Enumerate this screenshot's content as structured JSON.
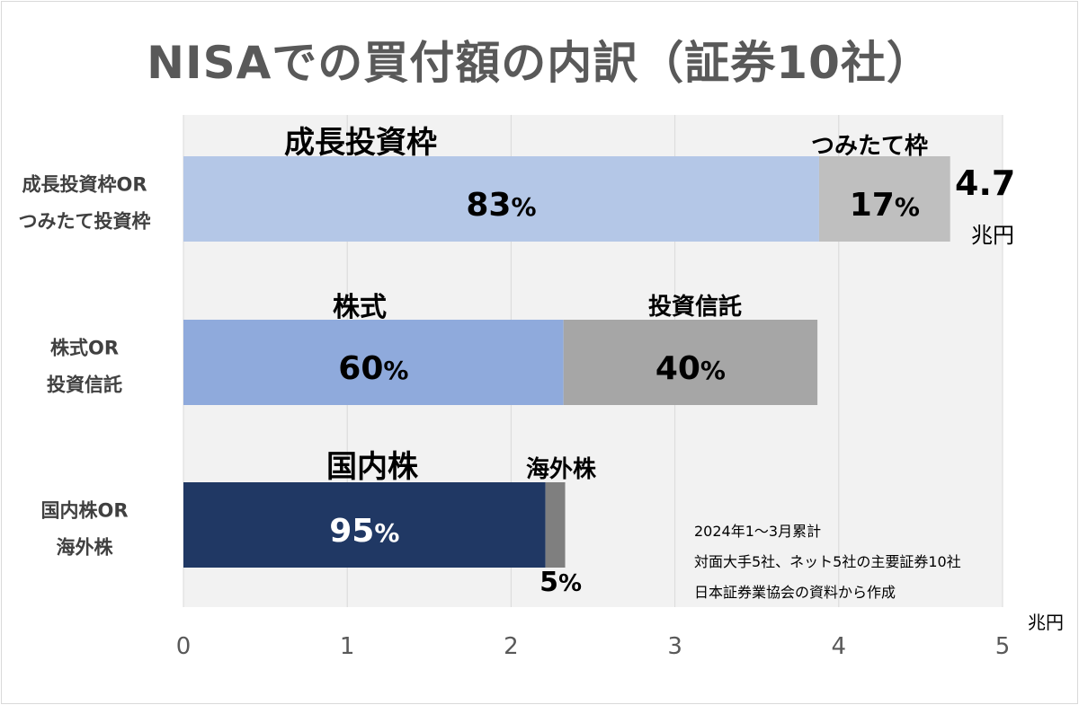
{
  "title": "NISAでの買付額の内訳（証券10社）",
  "chart_data": {
    "type": "bar",
    "orientation": "horizontal",
    "stacked": true,
    "title": "NISAでの買付額の内訳（証券10社）",
    "xlabel": "",
    "ylabel": "",
    "x_unit": "兆円",
    "xlim": [
      0,
      5
    ],
    "x_ticks": [
      "0",
      "1",
      "2",
      "3",
      "4",
      "5"
    ],
    "grid": true,
    "categories": [
      [
        "成長投資枠OR",
        "つみたて投資枠"
      ],
      [
        "株式OR",
        "投資信託"
      ],
      [
        "国内株OR",
        "海外株"
      ]
    ],
    "rows": [
      {
        "total": 4.68,
        "total_label": "4.7",
        "total_unit": "兆円",
        "segments": [
          {
            "name": "成長投資枠",
            "value": 3.88,
            "pct_label": "83%",
            "color": "#b4c7e7"
          },
          {
            "name": "つみたて枠",
            "value": 0.8,
            "pct_label": "17%",
            "color": "#bfbfbf"
          }
        ]
      },
      {
        "segments": [
          {
            "name": "株式",
            "value": 2.32,
            "pct_label": "60%",
            "color": "#8faadc"
          },
          {
            "name": "投資信託",
            "value": 1.55,
            "pct_label": "40%",
            "color": "#a6a6a6"
          }
        ]
      },
      {
        "segments": [
          {
            "name": "国内株",
            "value": 2.21,
            "pct_label": "95%",
            "color": "#203864"
          },
          {
            "name": "海外株",
            "value": 0.12,
            "pct_label": "5%",
            "color": "#7f7f7f"
          }
        ]
      }
    ],
    "colors": {
      "grid": "#d9d9d9",
      "plot_bg": "#f2f2f2",
      "axis_text": "#595959"
    }
  },
  "notes": [
    "2024年1～3月累計",
    "対面大手5社、ネット5社の主要証券10社",
    "日本証券業協会の資料から作成"
  ]
}
